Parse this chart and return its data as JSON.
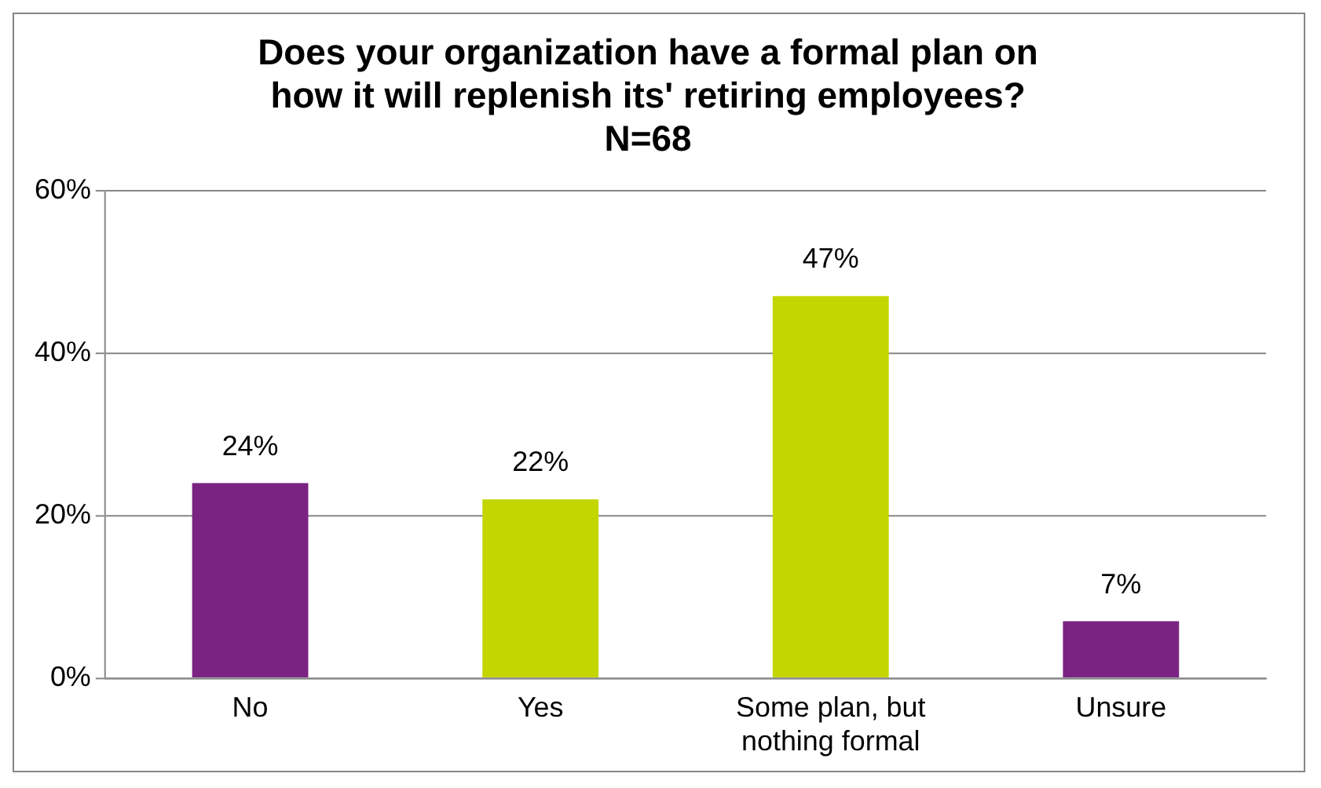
{
  "chart_data": {
    "type": "bar",
    "title": "Does your organization have a formal plan on how it will replenish its' retiring employees?",
    "subtitle": "N=68",
    "categories": [
      "No",
      "Yes",
      "Some plan, but nothing formal",
      "Unsure"
    ],
    "values": [
      24,
      22,
      47,
      7
    ],
    "colors": [
      "#7b2382",
      "#c4d600",
      "#c4d600",
      "#7b2382"
    ],
    "value_labels": [
      "24%",
      "22%",
      "47%",
      "7%"
    ],
    "ylim": [
      0,
      60
    ],
    "yticks": [
      {
        "value": 0,
        "label": "0%"
      },
      {
        "value": 20,
        "label": "20%"
      },
      {
        "value": 40,
        "label": "40%"
      },
      {
        "value": 60,
        "label": "60%"
      }
    ],
    "grid": "y",
    "legend": false
  }
}
